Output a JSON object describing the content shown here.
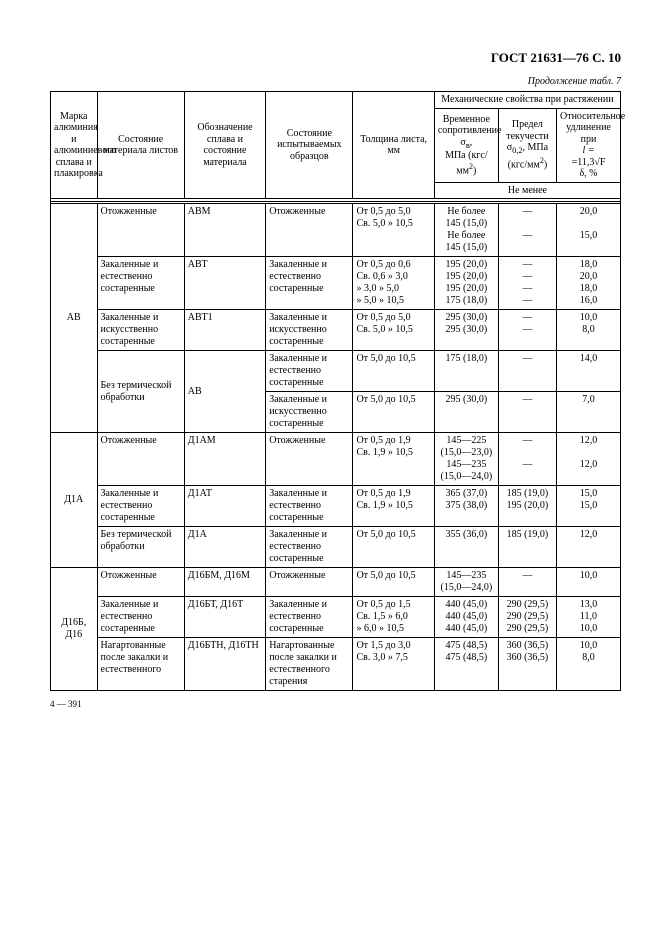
{
  "doc_number": "ГОСТ 21631—76 С. 10",
  "continuation": "Продолжение табл. 7",
  "footer": "4 — 391",
  "header": {
    "col1": "Марка алюминия и алюминиевого сплава и плакировка",
    "col2": "Состояние материала листов",
    "col3": "Обозначение сплава и состояние материала",
    "col4": "Состояние испытываемых образцов",
    "col5": "Толщина листа, мм",
    "mech_title": "Механические свойства при растяжении",
    "col6a": "Временное сопротивление σ",
    "col6b": "МПа (кгс/мм",
    "col7a": "Предел текучести σ",
    "col7b": ", МПа (кгс/мм",
    "col8a": "Относительное удлинение при",
    "col8b": "l =",
    "col8c": "=11,3√F",
    "col8d": "δ, %",
    "not_less": "Не менее"
  },
  "alloy": {
    "ab": "АВ",
    "d1a": "Д1А",
    "d16b": "Д16Б, Д16"
  },
  "rows": {
    "r1": {
      "mat": "Отожженные",
      "des": "АВМ",
      "samp": "Отожженные",
      "thick": "От 0,5 до 5,0\nСв. 5,0 » 10,5",
      "str": "Не более\n145 (15,0)\nНе более\n145 (15,0)",
      "yield": "—\n\n—",
      "elong": "20,0\n\n15,0"
    },
    "r2": {
      "mat": "Закаленные и естественно состаренные",
      "des": "АВТ",
      "samp": "Закаленные и естественно состаренные",
      "thick": "От 0,5 до 0,6\nСв. 0,6 » 3,0\n» 3,0 » 5,0\n» 5,0 » 10,5",
      "str": "195 (20,0)\n195 (20,0)\n195 (20,0)\n175 (18,0)",
      "yield": "—\n—\n—\n—",
      "elong": "18,0\n20,0\n18,0\n16,0"
    },
    "r3": {
      "mat": "Закаленные и искусственно состаренные",
      "des": "АВТ1",
      "samp": "Закаленные и искусственно состаренные",
      "thick": "От 0,5 до 5,0\nСв. 5,0 » 10,5",
      "str": "295 (30,0)\n295 (30,0)",
      "yield": "—\n—",
      "elong": "10,0\n8,0"
    },
    "r4a": {
      "samp": "Закаленные и естественно состаренные",
      "thick": "От 5,0 до 10,5",
      "str": "175 (18,0)",
      "yield": "—",
      "elong": "14,0"
    },
    "r4b": {
      "samp": "Закаленные и искусственно состаренные",
      "thick": "От 5,0 до 10,5",
      "str": "295 (30,0)",
      "yield": "—",
      "elong": "7,0"
    },
    "r4": {
      "mat": "Без термической обработки",
      "des": "АВ"
    },
    "r5": {
      "mat": "Отожженные",
      "des": "Д1АМ",
      "samp": "Отожженные",
      "thick": "От 0,5 до 1,9\nСв. 1,9 » 10,5",
      "str": "145—225\n(15,0—23,0)\n145—235\n(15,0—24,0)",
      "yield": "—\n\n—",
      "elong": "12,0\n\n12,0"
    },
    "r6": {
      "mat": "Закаленные и естественно состаренные",
      "des": "Д1АТ",
      "samp": "Закаленные и естественно состаренные",
      "thick": "От 0,5 до 1,9\nСв. 1,9 » 10,5",
      "str": "365 (37,0)\n375 (38,0)",
      "yield": "185 (19,0)\n195 (20,0)",
      "elong": "15,0\n15,0"
    },
    "r7": {
      "mat": "Без термической обработки",
      "des": "Д1А",
      "samp": "Закаленные и естественно состаренные",
      "thick": "От 5,0 до 10,5",
      "str": "355 (36,0)",
      "yield": "185 (19,0)",
      "elong": "12,0"
    },
    "r8": {
      "mat": "Отожженные",
      "des": "Д16БМ, Д16М",
      "samp": "Отожженные",
      "thick": "От 5,0 до 10,5",
      "str": "145—235\n(15,0—24,0)",
      "yield": "—",
      "elong": "10,0"
    },
    "r9": {
      "mat": "Закаленные и естественно состаренные",
      "des": "Д16БТ, Д16Т",
      "samp": "Закаленные и естественно состаренные",
      "thick": "От 0,5 до 1,5\nСв. 1,5 » 6,0\n» 6,0 » 10,5",
      "str": "440 (45,0)\n440 (45,0)\n440 (45,0)",
      "yield": "290 (29,5)\n290 (29,5)\n290 (29,5)",
      "elong": "13,0\n11,0\n10,0"
    },
    "r10": {
      "mat": "Нагартованные после закалки и естественного",
      "des": "Д16БТН, Д16ТН",
      "samp": "Нагартованные после закалки и естественного старения",
      "thick": "От 1,5 до 3,0\nСв. 3,0 » 7,5",
      "str": "475 (48,5)\n475 (48,5)",
      "yield": "360 (36,5)\n360 (36,5)",
      "elong": "10,0\n8,0"
    }
  }
}
